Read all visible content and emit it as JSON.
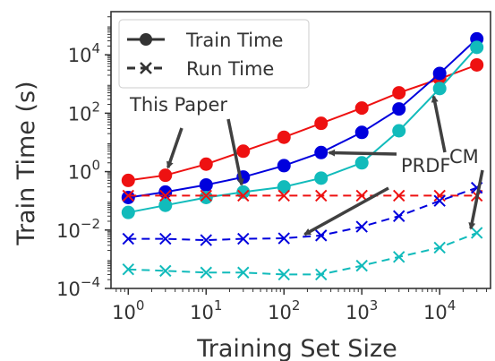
{
  "chart_data": {
    "type": "line",
    "xscale": "log",
    "yscale": "log",
    "xlabel": "Training Set Size",
    "ylabel": "Train Time (s)",
    "xlim": [
      0.6,
      45000
    ],
    "ylim": [
      0.0001,
      300000
    ],
    "xticks": [
      {
        "value": 1,
        "base": "10",
        "exp": "0"
      },
      {
        "value": 10,
        "base": "10",
        "exp": "1"
      },
      {
        "value": 100,
        "base": "10",
        "exp": "2"
      },
      {
        "value": 1000,
        "base": "10",
        "exp": "3"
      },
      {
        "value": 10000,
        "base": "10",
        "exp": "4"
      }
    ],
    "yticks": [
      {
        "value": 0.0001,
        "base": "10",
        "exp": "−4"
      },
      {
        "value": 0.01,
        "base": "10",
        "exp": "−2"
      },
      {
        "value": 1,
        "base": "10",
        "exp": "0"
      },
      {
        "value": 100,
        "base": "10",
        "exp": "2"
      },
      {
        "value": 10000,
        "base": "10",
        "exp": "4"
      }
    ],
    "x": [
      1,
      3,
      10,
      30,
      100,
      300,
      1000,
      3000,
      10000,
      30000
    ],
    "series": [
      {
        "name": "Train Time",
        "method": "This Paper",
        "style": "solid",
        "marker": "circle",
        "color": "#ee1111",
        "values": [
          0.5,
          0.75,
          1.8,
          5,
          15,
          45,
          150,
          500,
          1500,
          4500
        ]
      },
      {
        "name": "Train Time",
        "method": "PRDF",
        "style": "solid",
        "marker": "circle",
        "color": "#0000dd",
        "values": [
          0.13,
          0.2,
          0.35,
          0.65,
          1.6,
          4.5,
          22,
          140,
          2300,
          35000
        ]
      },
      {
        "name": "Train Time",
        "method": "CM",
        "style": "solid",
        "marker": "circle",
        "color": "#11bbbb",
        "values": [
          0.04,
          0.07,
          0.13,
          0.2,
          0.3,
          0.6,
          2,
          25,
          700,
          18000
        ]
      },
      {
        "name": "Run Time",
        "method": "This Paper",
        "style": "dashed",
        "marker": "x",
        "color": "#ee1111",
        "values": [
          0.15,
          0.15,
          0.15,
          0.15,
          0.15,
          0.15,
          0.15,
          0.15,
          0.15,
          0.15
        ]
      },
      {
        "name": "Run Time",
        "method": "PRDF",
        "style": "dashed",
        "marker": "x",
        "color": "#0000dd",
        "values": [
          0.005,
          0.005,
          0.0045,
          0.005,
          0.0052,
          0.0065,
          0.013,
          0.03,
          0.1,
          0.28
        ]
      },
      {
        "name": "Run Time",
        "method": "CM",
        "style": "dashed",
        "marker": "x",
        "color": "#11bbbb",
        "values": [
          0.00045,
          0.0004,
          0.00035,
          0.00035,
          0.0003,
          0.0003,
          0.0006,
          0.0012,
          0.0025,
          0.008
        ]
      }
    ],
    "legend": {
      "placement": "top-left",
      "entries": [
        {
          "label": "Train Time",
          "style": "solid",
          "marker": "circle"
        },
        {
          "label": "Run Time",
          "style": "dashed",
          "marker": "x"
        }
      ]
    },
    "annotations": [
      {
        "text": "This Paper",
        "targets": [
          {
            "x": 3,
            "y": 0.75
          },
          {
            "x": 30,
            "y": 0.19
          }
        ]
      },
      {
        "text": "PRDF",
        "targets": [
          {
            "x": 300,
            "y": 4.5
          },
          {
            "x": 150,
            "y": 0.0052
          }
        ]
      },
      {
        "text": "CM",
        "targets": [
          {
            "x": 8000,
            "y": 700
          },
          {
            "x": 24000,
            "y": 0.006
          }
        ]
      }
    ],
    "colors": {
      "axes": "#333333",
      "text": "#333333",
      "arrow": "#404040"
    }
  }
}
